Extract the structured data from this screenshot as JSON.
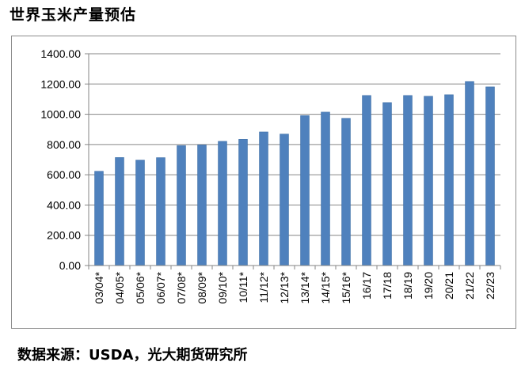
{
  "title": "世界玉米产量预估",
  "source": "数据来源：USDA，光大期货研究所",
  "colors": {
    "bar": "#4f81bd",
    "bar_edge": "#3e6fa8",
    "axis": "#868686",
    "grid": "#868686",
    "text": "#000000"
  },
  "chart_data": {
    "type": "bar",
    "title": "",
    "xlabel": "",
    "ylabel": "",
    "ylim": [
      0,
      1400
    ],
    "yticks": [
      "0.00",
      "200.00",
      "400.00",
      "600.00",
      "800.00",
      "1000.00",
      "1200.00",
      "1400.00"
    ],
    "grid": true,
    "legend": "none",
    "categories": [
      "03/04*",
      "04/05*",
      "05/06*",
      "06/07*",
      "07/08*",
      "08/09*",
      "09/10*",
      "10/11*",
      "11/12*",
      "12/13*",
      "13/14*",
      "14/15*",
      "15/16*",
      "16/17",
      "17/18",
      "18/19",
      "19/20",
      "20/21",
      "21/22",
      "22/23"
    ],
    "values": [
      623,
      714,
      697,
      713,
      793,
      797,
      821,
      834,
      883,
      869,
      991,
      1014,
      973,
      1124,
      1077,
      1124,
      1119,
      1129,
      1216,
      1181
    ]
  }
}
